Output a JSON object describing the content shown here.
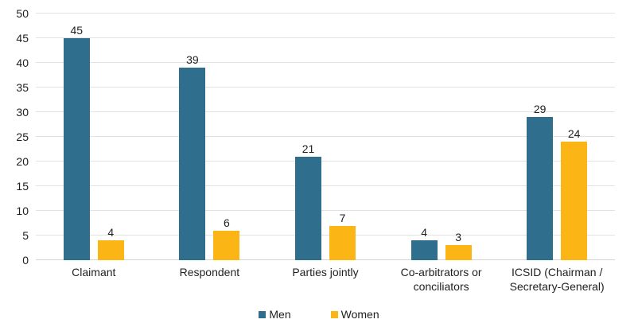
{
  "chart_data": {
    "type": "bar",
    "categories": [
      "Claimant",
      "Respondent",
      "Parties jointly",
      "Co-arbitrators or\nconciliators",
      "ICSID (Chairman /\nSecretary-General)"
    ],
    "series": [
      {
        "name": "Men",
        "color": "#2f6e8d",
        "values": [
          45,
          39,
          21,
          4,
          29
        ]
      },
      {
        "name": "Women",
        "color": "#fbb616",
        "values": [
          4,
          6,
          7,
          3,
          24
        ]
      }
    ],
    "ylim": [
      0,
      50
    ],
    "ytick_step": 5,
    "yticks": [
      0,
      5,
      10,
      15,
      20,
      25,
      30,
      35,
      40,
      45,
      50
    ],
    "grid": true,
    "value_labels": true,
    "legend_position": "bottom",
    "legend_labels": [
      "Men",
      "Women"
    ]
  },
  "colors": {
    "men_bar": "#2f6e8d",
    "women_bar": "#fbb616",
    "gridline": "#e2e2e2",
    "axis_line": "#d4d4d4",
    "text": "#1f1f1f",
    "background": "#ffffff"
  }
}
